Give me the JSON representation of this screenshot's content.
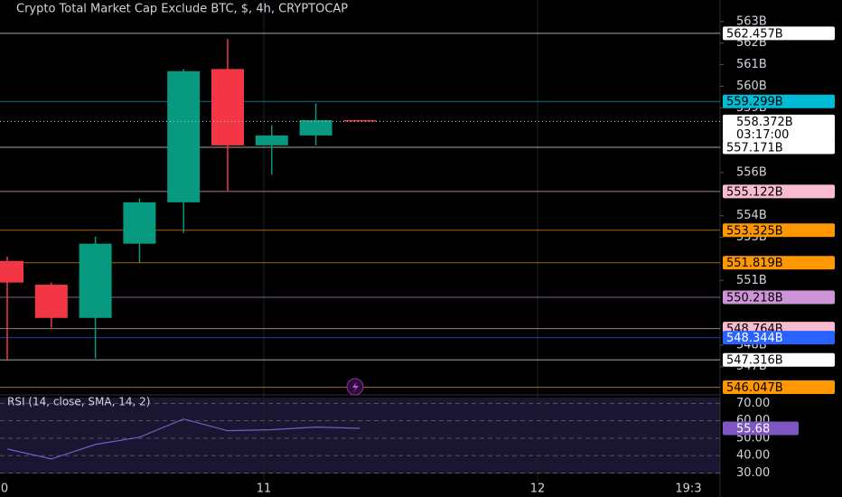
{
  "chart_data": [
    {
      "type": "candlestick",
      "title": "Crypto Total Market Cap Exclude BTC, $, 4h, CRYPTOCAP",
      "ylim": [
        545.9,
        564.0
      ],
      "yticks": [
        {
          "value": 547,
          "label": "547B"
        },
        {
          "value": 548,
          "label": "548B"
        },
        {
          "value": 551,
          "label": "551B"
        },
        {
          "value": 553,
          "label": "553B"
        },
        {
          "value": 554,
          "label": "554B"
        },
        {
          "value": 556,
          "label": "556B"
        },
        {
          "value": 559,
          "label": "559B"
        },
        {
          "value": 560,
          "label": "560B"
        },
        {
          "value": 561,
          "label": "561B"
        },
        {
          "value": 562,
          "label": "562B"
        },
        {
          "value": 563,
          "label": "563B"
        }
      ],
      "time_labels": [
        "0",
        "11",
        "12",
        "19:3"
      ],
      "up_color": "#089981",
      "down_color": "#f23645",
      "open": [
        551.9,
        550.8,
        549.26,
        552.7,
        554.62,
        560.8,
        557.26,
        557.72,
        558.43
      ],
      "high": [
        552.1,
        550.9,
        553.03,
        554.8,
        560.8,
        562.2,
        558.2,
        559.2,
        558.43
      ],
      "low": [
        547.3,
        548.8,
        547.37,
        551.8,
        553.2,
        555.1,
        555.9,
        557.26,
        558.37
      ],
      "close": [
        550.9,
        549.26,
        552.7,
        554.62,
        560.7,
        557.26,
        557.72,
        558.43,
        558.37
      ],
      "levels": [
        {
          "value": 562.457,
          "label": "562.457B",
          "color": "#ffffff"
        },
        {
          "value": 559.299,
          "label": "559.299B",
          "color": "#00bcd4"
        },
        {
          "value": 557.171,
          "label": "557.171B",
          "color": "#ffffff"
        },
        {
          "value": 555.122,
          "label": "555.122B",
          "color": "#f8bbd0"
        },
        {
          "value": 553.325,
          "label": "553.325B",
          "color": "#ff9800"
        },
        {
          "value": 551.819,
          "label": "551.819B",
          "color": "#ff9800"
        },
        {
          "value": 550.218,
          "label": "550.218B",
          "color": "#ce93d8"
        },
        {
          "value": 548.764,
          "label": "548.764B",
          "color": "#f8bbd0"
        },
        {
          "value": 548.344,
          "label": "548.344B",
          "color": "#2962ff"
        },
        {
          "value": 547.316,
          "label": "547.316B",
          "color": "#ffffff"
        },
        {
          "value": 546.047,
          "label": "546.047B",
          "color": "#ff9800"
        }
      ],
      "last_price": {
        "value": 558.372,
        "label": "558.372B",
        "countdown": "03:17:00"
      }
    },
    {
      "type": "line",
      "title": "RSI (14, close, SMA, 14, 2)",
      "ylim": [
        25.6,
        73.3
      ],
      "yticks": [
        {
          "value": 30,
          "label": "30.00"
        },
        {
          "value": 40,
          "label": "40.00"
        },
        {
          "value": 50,
          "label": "50.00"
        },
        {
          "value": 60,
          "label": "60.00"
        },
        {
          "value": 70,
          "label": "70.00"
        }
      ],
      "color": "#7e57c2",
      "values": [
        43.8,
        38.1,
        46.4,
        50.6,
        61,
        54.3,
        54.9,
        56.4,
        55.68
      ]
    }
  ]
}
